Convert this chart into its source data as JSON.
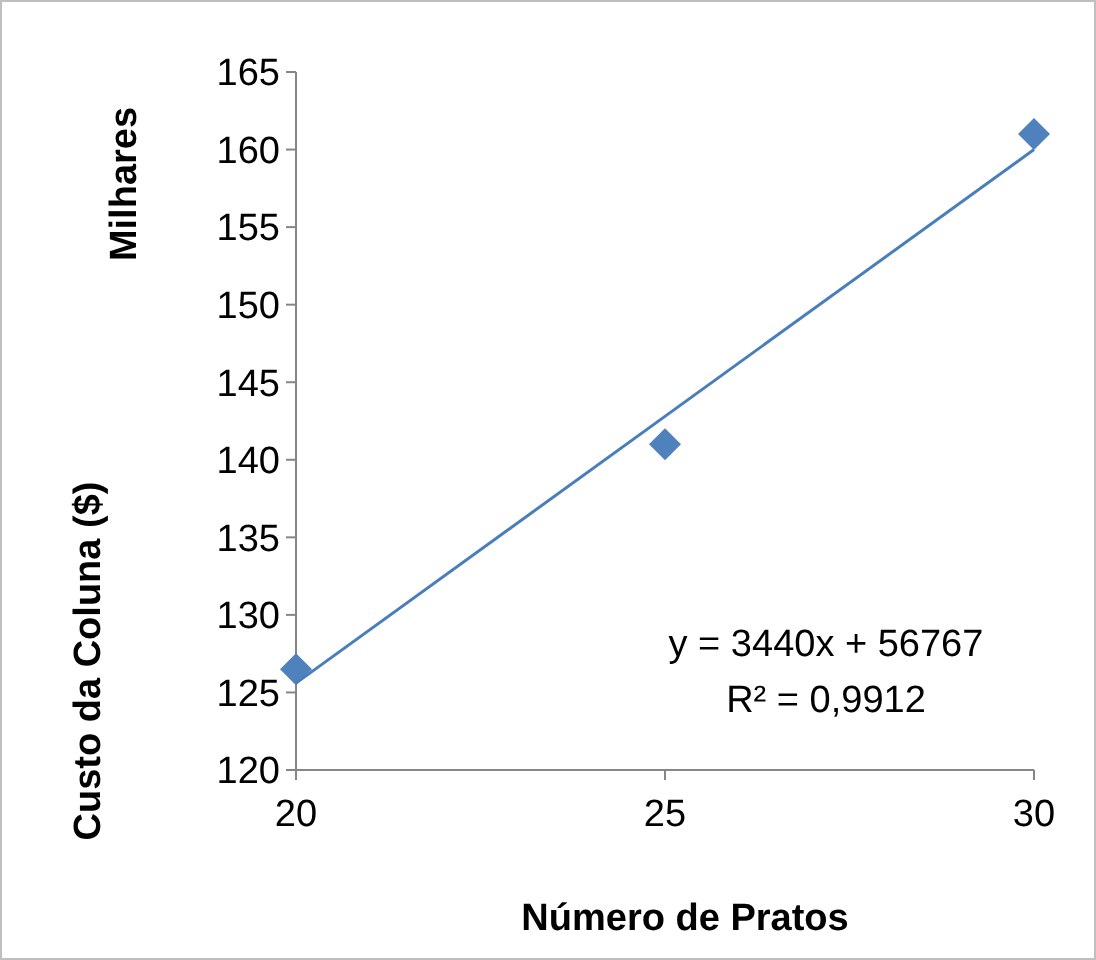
{
  "chart_data": {
    "type": "scatter",
    "xlabel": "Número de Pratos",
    "ylabel": "Custo da Coluna ($)",
    "annotations": [
      "Milhares",
      "y = 3440x + 56767",
      "R² = 0,9912"
    ],
    "xlim": [
      20,
      30
    ],
    "xticks": [
      20,
      25,
      30
    ],
    "ylim": [
      120,
      165
    ],
    "yticks": [
      120,
      125,
      130,
      135,
      140,
      145,
      150,
      155,
      160,
      165
    ],
    "grid": false,
    "series": [
      {
        "color": "#4f81bd",
        "marker": "diamond",
        "x": [
          20,
          25,
          30
        ],
        "values": [
          126.5,
          141,
          161
        ]
      },
      {
        "type": "line",
        "color": "#4a7ebb",
        "marker": "none",
        "line_style": "solid",
        "x": [
          20,
          30
        ],
        "values": [
          125.6,
          160.0
        ]
      }
    ]
  }
}
